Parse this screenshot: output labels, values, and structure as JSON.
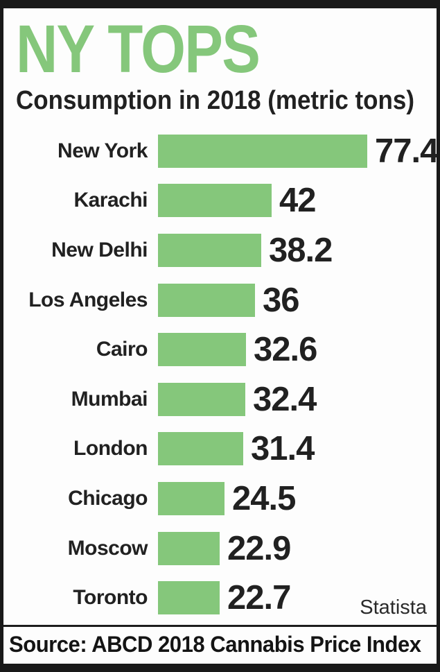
{
  "meta": {
    "colors": {
      "accent_green": "#85C77B",
      "text": "#212121",
      "frame_black": "#191919",
      "panel_background": "#FDFDFD"
    }
  },
  "header": {
    "title": "NY TOPS",
    "subtitle": "Consumption in 2018 (metric tons)"
  },
  "chart_data": {
    "type": "bar",
    "orientation": "horizontal",
    "title": "NY TOPS",
    "subtitle": "Consumption in 2018 (metric tons)",
    "unit": "metric tons",
    "categories": [
      "New York",
      "Karachi",
      "New Delhi",
      "Los Angeles",
      "Cairo",
      "Mumbai",
      "London",
      "Chicago",
      "Moscow",
      "Toronto"
    ],
    "values": [
      77.4,
      42,
      38.2,
      36,
      32.6,
      32.4,
      31.4,
      24.5,
      22.9,
      22.7
    ],
    "value_labels": [
      "77.4",
      "42",
      "38.2",
      "36",
      "32.6",
      "32.4",
      "31.4",
      "24.5",
      "22.9",
      "22.7"
    ],
    "xlim": [
      0,
      80
    ],
    "grid": false,
    "legend": false,
    "bar_color": "#85C77B",
    "value_label_position": "right-of-bar",
    "category_label_position": "left"
  },
  "attribution": {
    "brand": "Statista"
  },
  "footer": {
    "source": "Source: ABCD 2018 Cannabis Price Index"
  }
}
